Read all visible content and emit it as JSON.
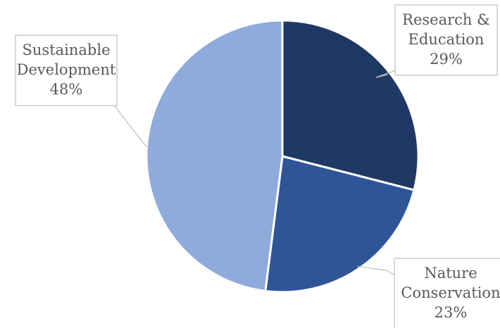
{
  "chart_data": {
    "type": "pie",
    "title": "",
    "slices": [
      {
        "category_lines": [
          "Research &",
          "Education"
        ],
        "value": 29,
        "label": "29%",
        "color": "#203864"
      },
      {
        "category_lines": [
          "Nature",
          "Conservation"
        ],
        "value": 23,
        "label": "23%",
        "color": "#2F5597"
      },
      {
        "category_lines": [
          "Sustainable",
          "Development"
        ],
        "value": 48,
        "label": "48%",
        "color": "#8FAADC"
      }
    ],
    "legend": "none",
    "data_labels": "callouts"
  }
}
